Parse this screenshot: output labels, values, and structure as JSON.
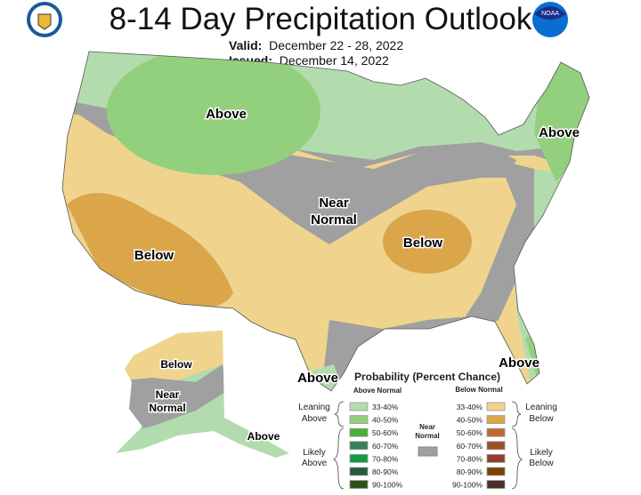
{
  "title": "8-14 Day Precipitation Outlook",
  "valid_label": "Valid:",
  "valid_value": "December 22 - 28, 2022",
  "issued_label": "Issued:",
  "issued_value": "December 14, 2022",
  "logos": {
    "left": "Department of Commerce seal",
    "right": "NOAA",
    "right_text": "NOAA"
  },
  "map_labels": {
    "above_nw": "Above",
    "above_ne": "Above",
    "near_normal_1": "Near",
    "near_normal_2": "Normal",
    "below_sw": "Below",
    "below_central": "Below",
    "above_tx": "Above",
    "above_fl": "Above",
    "ak_below": "Below",
    "ak_near_1": "Near",
    "ak_near_2": "Normal",
    "ak_above": "Above"
  },
  "legend": {
    "title": "Probability (Percent Chance)",
    "above_header": "Above Normal",
    "below_header": "Below Normal",
    "leaning_above": [
      "Leaning",
      "Above"
    ],
    "likely_above": [
      "Likely",
      "Above"
    ],
    "leaning_below": [
      "Leaning",
      "Below"
    ],
    "likely_below": [
      "Likely",
      "Below"
    ],
    "near_normal": [
      "Near",
      "Normal"
    ],
    "near_normal_color": "#a0a0a0",
    "above": [
      {
        "range": "33-40%",
        "color": "#b3dcae"
      },
      {
        "range": "40-50%",
        "color": "#93d07e"
      },
      {
        "range": "50-60%",
        "color": "#4bb036"
      },
      {
        "range": "60-70%",
        "color": "#358059"
      },
      {
        "range": "70-80%",
        "color": "#129a3f"
      },
      {
        "range": "80-90%",
        "color": "#245a37"
      },
      {
        "range": "90-100%",
        "color": "#29531a"
      }
    ],
    "below": [
      {
        "range": "33-40%",
        "color": "#f0d48e"
      },
      {
        "range": "40-50%",
        "color": "#dba64a"
      },
      {
        "range": "50-60%",
        "color": "#bb6a2e"
      },
      {
        "range": "60-70%",
        "color": "#9a4f2d"
      },
      {
        "range": "70-80%",
        "color": "#91402f"
      },
      {
        "range": "80-90%",
        "color": "#7b3f00"
      },
      {
        "range": "90-100%",
        "color": "#4a2e2a"
      }
    ]
  }
}
